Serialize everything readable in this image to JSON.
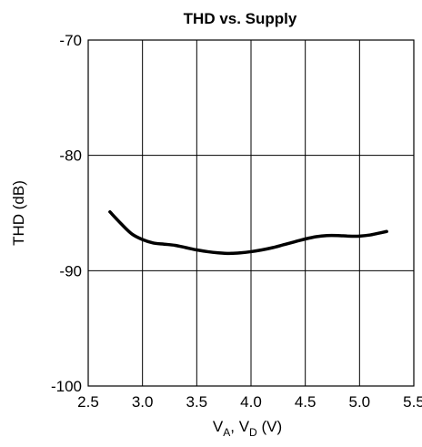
{
  "chart_data": {
    "type": "line",
    "title": "THD vs. Supply",
    "xlabel": {
      "main": "V",
      "sub1": "A",
      "mid": ", V",
      "sub2": "D",
      "tail": " (V)"
    },
    "ylabel": "THD (dB)",
    "xlim": [
      2.5,
      5.5
    ],
    "ylim": [
      -100,
      -70
    ],
    "x_ticks": [
      "2.5",
      "3.0",
      "3.5",
      "4.0",
      "4.5",
      "5.0",
      "5.5"
    ],
    "x_tick_values": [
      2.5,
      3.0,
      3.5,
      4.0,
      4.5,
      5.0,
      5.5
    ],
    "y_ticks": [
      "-70",
      "-80",
      "-90",
      "-100"
    ],
    "y_tick_values": [
      -70,
      -80,
      -90,
      -100
    ],
    "grid": true,
    "series": [
      {
        "x": [
          2.7,
          2.8,
          2.9,
          3.0,
          3.1,
          3.2,
          3.3,
          3.4,
          3.5,
          3.6,
          3.7,
          3.8,
          3.9,
          4.0,
          4.1,
          4.2,
          4.3,
          4.4,
          4.5,
          4.6,
          4.7,
          4.8,
          4.9,
          5.0,
          5.1,
          5.2,
          5.25
        ],
        "y": [
          -84.9,
          -85.9,
          -86.8,
          -87.3,
          -87.6,
          -87.7,
          -87.8,
          -88.0,
          -88.2,
          -88.35,
          -88.45,
          -88.5,
          -88.45,
          -88.35,
          -88.2,
          -88.0,
          -87.75,
          -87.5,
          -87.25,
          -87.05,
          -86.95,
          -86.95,
          -87.0,
          -87.0,
          -86.9,
          -86.7,
          -86.6
        ]
      }
    ]
  }
}
